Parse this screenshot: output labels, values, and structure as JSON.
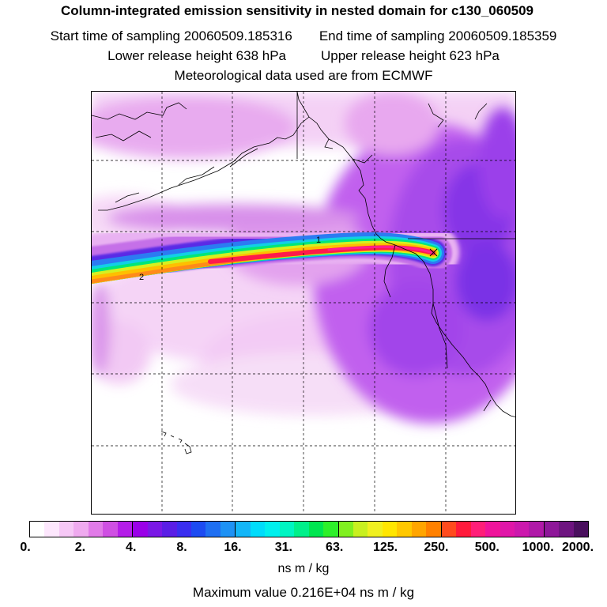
{
  "header": {
    "title": "Column-integrated emission sensitivity in nested domain for c130_060509",
    "start_time": "Start time of sampling 20060509.185316",
    "end_time": "End time of sampling 20060509.185359",
    "lower_height": "Lower release height  638 hPa",
    "upper_height": "Upper release height  623 hPa",
    "met_data": "Meteorological data used are from ECMWF"
  },
  "map": {
    "labels": {
      "label1": "1",
      "label2": "2"
    }
  },
  "colorbar": {
    "tick_labels": [
      "0.",
      "2.",
      "4.",
      "8.",
      "16.",
      "31.",
      "63.",
      "125.",
      "250.",
      "500.",
      "1000.",
      "2000."
    ],
    "colors": [
      "#ffffff",
      "#fde7fd",
      "#f6c8f6",
      "#efaaef",
      "#e17be8",
      "#cf4fe3",
      "#b41de8",
      "#9a00e8",
      "#7a18e6",
      "#5a1ee6",
      "#3a2ef0",
      "#1d4bf2",
      "#1f6ff2",
      "#1e92f5",
      "#13b6f8",
      "#00dcfb",
      "#00f0ee",
      "#00f5c2",
      "#00f08a",
      "#00e650",
      "#2ef02a",
      "#80f020",
      "#c8f020",
      "#f0f020",
      "#ffe600",
      "#ffc800",
      "#ffa500",
      "#ff8000",
      "#ff4b1e",
      "#ff1a3c",
      "#ff1e78",
      "#f0149b",
      "#e016a8",
      "#cc18ad",
      "#b019a8",
      "#8e1799",
      "#6e1580",
      "#4a105e"
    ],
    "units": "ns m / kg",
    "max_value": "Maximum value  0.216E+04 ns m / kg"
  }
}
